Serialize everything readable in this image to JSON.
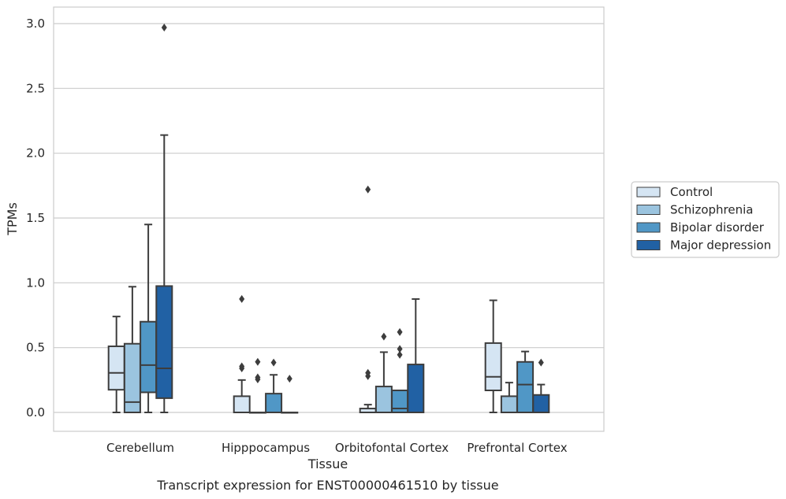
{
  "caption": "Transcript expression for ENST00000461510 by tissue",
  "chart_data": {
    "type": "boxplot",
    "xlabel": "Tissue",
    "ylabel": "TPMs",
    "ylim": [
      -0.14,
      3.12
    ],
    "yticks": [
      "0.0",
      "0.5",
      "1.0",
      "1.5",
      "2.0",
      "2.5",
      "3.0"
    ],
    "ytick_values": [
      0,
      0.5,
      1.0,
      1.5,
      2.0,
      2.5,
      3.0
    ],
    "grid": "horizontal",
    "legend_position": "right",
    "categories": [
      "Cerebellum",
      "Hipppocampus",
      "Orbitofontal Cortex",
      "Prefrontal Cortex"
    ],
    "series": [
      {
        "name": "Control",
        "color": "#d5e5f3",
        "boxes": [
          {
            "whislo": 0.0,
            "q1": 0.175,
            "med": 0.305,
            "q3": 0.51,
            "whishi": 0.74,
            "fliers": []
          },
          {
            "whislo": 0.0,
            "q1": 0.0,
            "med": 0.0,
            "q3": 0.125,
            "whishi": 0.25,
            "fliers": [
              0.34,
              0.355,
              0.875
            ]
          },
          {
            "whislo": 0.0,
            "q1": 0.0,
            "med": 0.0,
            "q3": 0.03,
            "whishi": 0.06,
            "fliers": [
              0.28,
              0.305,
              1.72
            ]
          },
          {
            "whislo": 0.0,
            "q1": 0.17,
            "med": 0.275,
            "q3": 0.535,
            "whishi": 0.865,
            "fliers": []
          }
        ]
      },
      {
        "name": "Schizophrenia",
        "color": "#9bc4df",
        "boxes": [
          {
            "whislo": 0.0,
            "q1": 0.0,
            "med": 0.08,
            "q3": 0.53,
            "whishi": 0.97,
            "fliers": []
          },
          {
            "whislo": 0.0,
            "q1": 0.0,
            "med": 0.0,
            "q3": 0.0,
            "whishi": 0.0,
            "fliers": [
              0.255,
              0.27,
              0.39
            ]
          },
          {
            "whislo": 0.0,
            "q1": 0.0,
            "med": 0.0,
            "q3": 0.2,
            "whishi": 0.465,
            "fliers": [
              0.585
            ]
          },
          {
            "whislo": 0.0,
            "q1": 0.0,
            "med": 0.0,
            "q3": 0.125,
            "whishi": 0.23,
            "fliers": []
          }
        ]
      },
      {
        "name": "Bipolar disorder",
        "color": "#5097c6",
        "boxes": [
          {
            "whislo": 0.0,
            "q1": 0.155,
            "med": 0.365,
            "q3": 0.7,
            "whishi": 1.45,
            "fliers": []
          },
          {
            "whislo": 0.0,
            "q1": 0.0,
            "med": 0.0,
            "q3": 0.145,
            "whishi": 0.29,
            "fliers": [
              0.385
            ]
          },
          {
            "whislo": 0.0,
            "q1": 0.0,
            "med": 0.03,
            "q3": 0.17,
            "whishi": 0.17,
            "fliers": [
              0.445,
              0.49,
              0.62
            ]
          },
          {
            "whislo": 0.0,
            "q1": 0.0,
            "med": 0.215,
            "q3": 0.39,
            "whishi": 0.47,
            "fliers": []
          }
        ]
      },
      {
        "name": "Major depression",
        "color": "#2161a4",
        "boxes": [
          {
            "whislo": 0.0,
            "q1": 0.11,
            "med": 0.34,
            "q3": 0.975,
            "whishi": 2.14,
            "fliers": [
              2.97
            ]
          },
          {
            "whislo": 0.0,
            "q1": 0.0,
            "med": 0.0,
            "q3": 0.0,
            "whishi": 0.0,
            "fliers": [
              0.26
            ]
          },
          {
            "whislo": 0.0,
            "q1": 0.0,
            "med": 0.0,
            "q3": 0.37,
            "whishi": 0.875,
            "fliers": []
          },
          {
            "whislo": 0.0,
            "q1": 0.0,
            "med": 0.0,
            "q3": 0.135,
            "whishi": 0.215,
            "fliers": [
              0.385
            ]
          }
        ]
      }
    ]
  }
}
